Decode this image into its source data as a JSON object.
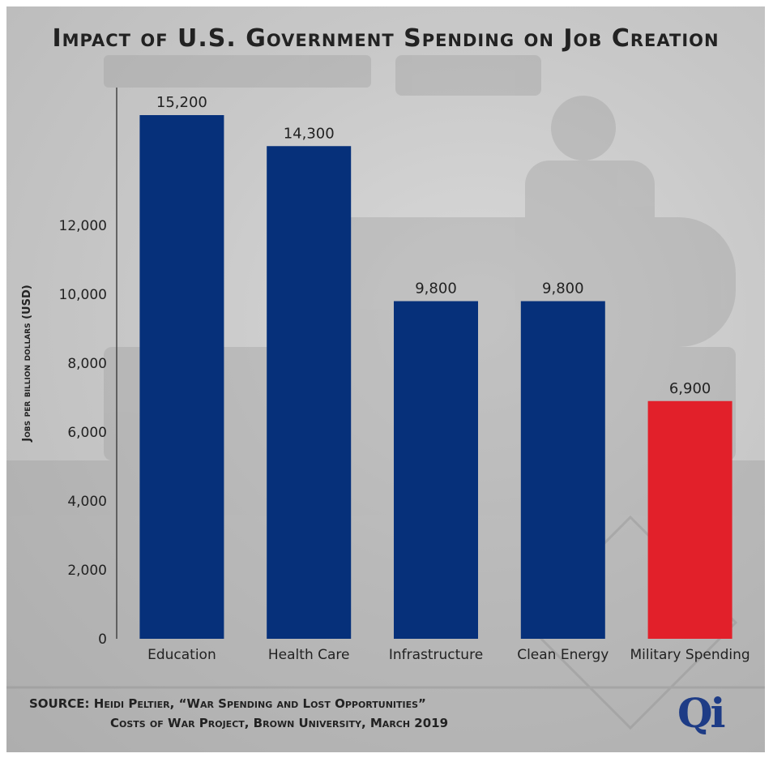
{
  "title": "Impact of U.S. Government Spending on Job Creation",
  "source": {
    "line1": "SOURCE: Heidi Peltier, “War Spending and Lost Opportunities”",
    "line2": "Costs of War Project, Brown University, March 2019"
  },
  "logo_text": "Qi",
  "colors": {
    "bar_default": "#06307a",
    "bar_highlight": "#e2202a",
    "text": "#222222",
    "axis": "#444444"
  },
  "chart_data": {
    "type": "bar",
    "title": "Impact of U.S. Government Spending on Job Creation",
    "ylabel": "Jobs per billion dollars (USD)",
    "xlabel": "",
    "categories": [
      "Education",
      "Health Care",
      "Infrastructure",
      "Clean Energy",
      "Military Spending"
    ],
    "values": [
      15200,
      14300,
      9800,
      9800,
      6900
    ],
    "value_labels": [
      "15,200",
      "14,300",
      "9,800",
      "9,800",
      "6,900"
    ],
    "highlight_index": 4,
    "yticks": [
      0,
      2000,
      4000,
      6000,
      8000,
      10000,
      12000
    ],
    "ytick_labels": [
      "0",
      "2,000",
      "4,000",
      "6,000",
      "8,000",
      "10,000",
      "12,000"
    ],
    "ylim": [
      0,
      16000
    ],
    "grid": false,
    "legend": "none"
  }
}
